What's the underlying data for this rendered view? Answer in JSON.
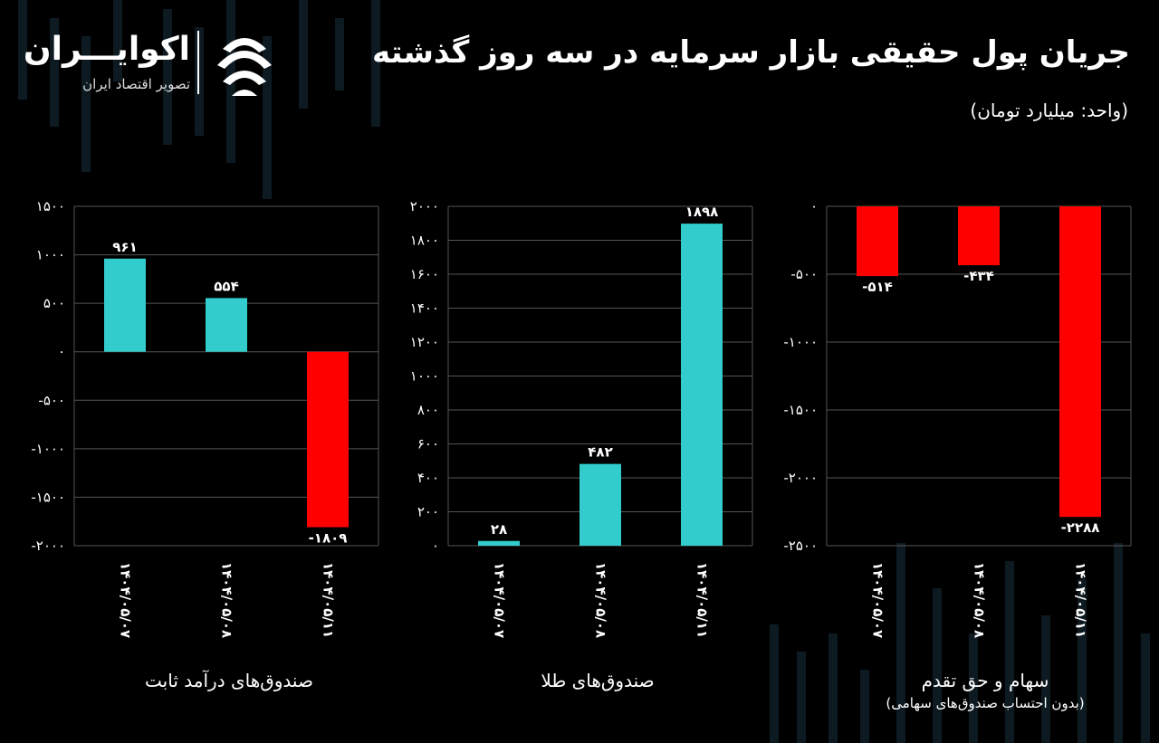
{
  "header": {
    "title": "جریان پول حقیقی بازار سرمایه در سه روز گذشته",
    "unit": "(واحد: میلیارد تومان)"
  },
  "logo": {
    "name": "اکوایـــران",
    "tagline": "تصویر اقتصاد ایران"
  },
  "colors": {
    "positive": "#33cccc",
    "negative": "#ff0000",
    "grid": "#555555",
    "background": "#000000"
  },
  "chart_data": [
    {
      "type": "bar",
      "title": "صندوق‌های درآمد ثابت",
      "subtitle": "",
      "categories": [
        "۱۴۰۴/۰۵/۰۷",
        "۱۴۰۴/۰۵/۰۸",
        "۱۴۰۴/۰۵/۱۱"
      ],
      "values": [
        961,
        554,
        -1809
      ],
      "value_labels": [
        "۹۶۱",
        "۵۵۴",
        "-۱۸۰۹"
      ],
      "ylim": [
        -2000,
        1500
      ],
      "yticks": [
        1500,
        1000,
        500,
        0,
        -500,
        -1000,
        -1500,
        -2000
      ],
      "ytick_labels": [
        "۱۵۰۰",
        "۱۰۰۰",
        "۵۰۰",
        "۰",
        "-۵۰۰",
        "-۱۰۰۰",
        "-۱۵۰۰",
        "-۲۰۰۰"
      ],
      "grid": true
    },
    {
      "type": "bar",
      "title": "صندوق‌های طلا",
      "subtitle": "",
      "categories": [
        "۱۴۰۴/۰۵/۰۷",
        "۱۴۰۴/۰۵/۰۸",
        "۱۴۰۴/۰۵/۱۱"
      ],
      "values": [
        28,
        482,
        1898
      ],
      "value_labels": [
        "۲۸",
        "۴۸۲",
        "۱۸۹۸"
      ],
      "ylim": [
        0,
        2000
      ],
      "yticks": [
        2000,
        1800,
        1600,
        1400,
        1200,
        1000,
        800,
        600,
        400,
        200,
        0
      ],
      "ytick_labels": [
        "۲۰۰۰",
        "۱۸۰۰",
        "۱۶۰۰",
        "۱۴۰۰",
        "۱۲۰۰",
        "۱۰۰۰",
        "۸۰۰",
        "۶۰۰",
        "۴۰۰",
        "۲۰۰",
        "۰"
      ],
      "grid": true
    },
    {
      "type": "bar",
      "title": "سهام و حق تقدم",
      "subtitle": "(بدون احتساب صندوق‌های سهامی)",
      "categories": [
        "۱۴۰۴/۰۵/۰۷",
        "۱۴۰۴/۰۵/۰۸",
        "۱۴۰۴/۰۵/۱۱"
      ],
      "values": [
        -514,
        -434,
        -2288
      ],
      "value_labels": [
        "-۵۱۴",
        "-۴۳۴",
        "-۲۲۸۸"
      ],
      "ylim": [
        -2500,
        0
      ],
      "yticks": [
        0,
        -500,
        -1000,
        -1500,
        -2000,
        -2500
      ],
      "ytick_labels": [
        "۰",
        "-۵۰۰",
        "-۱۰۰۰",
        "-۱۵۰۰",
        "-۲۰۰۰",
        "-۲۵۰۰"
      ],
      "grid": true
    }
  ]
}
